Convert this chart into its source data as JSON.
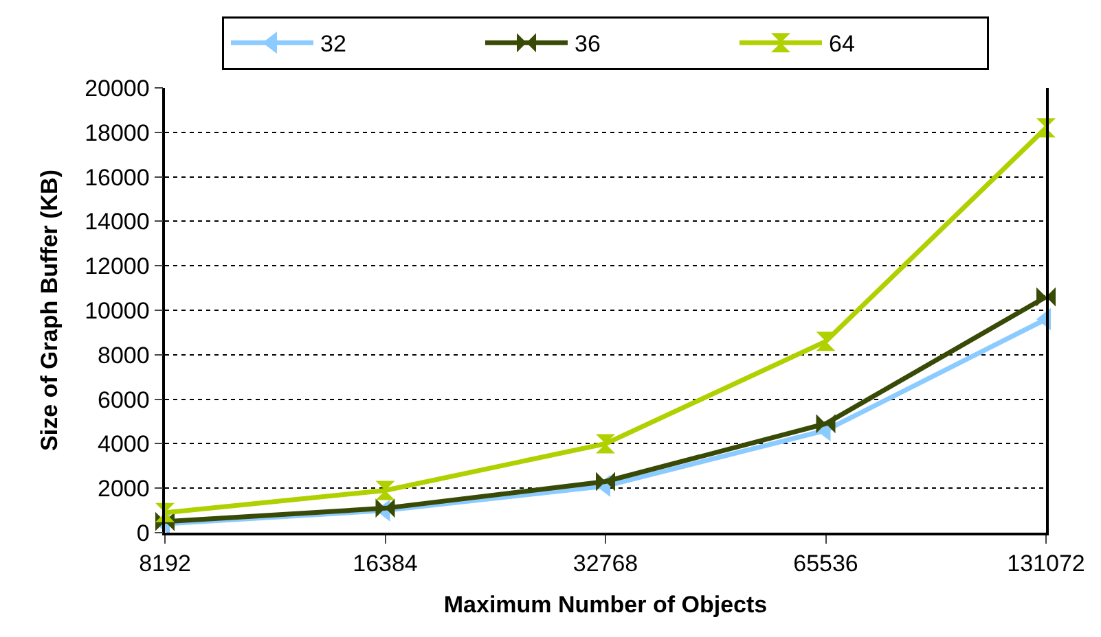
{
  "chart_data": {
    "type": "line",
    "xlabel": "Maximum Number of Objects",
    "ylabel": "Size of Graph Buffer (KB)",
    "categories": [
      "8192",
      "16384",
      "32768",
      "65536",
      "131072"
    ],
    "series": [
      {
        "name": "32",
        "color": "#8ccbff",
        "marker": "triangle",
        "values": [
          400,
          1000,
          2100,
          4600,
          9600
        ]
      },
      {
        "name": "36",
        "color": "#384a06",
        "values": [
          500,
          1100,
          2300,
          4900,
          10600
        ]
      },
      {
        "name": "64",
        "color": "#b0d000",
        "values": [
          900,
          1900,
          4000,
          8600,
          18200
        ]
      }
    ],
    "ylim": [
      0,
      20000
    ],
    "yticks": [
      0,
      2000,
      4000,
      6000,
      8000,
      10000,
      12000,
      14000,
      16000,
      18000,
      20000
    ],
    "grid": "y",
    "legend": "top",
    "line_style": "solid"
  }
}
